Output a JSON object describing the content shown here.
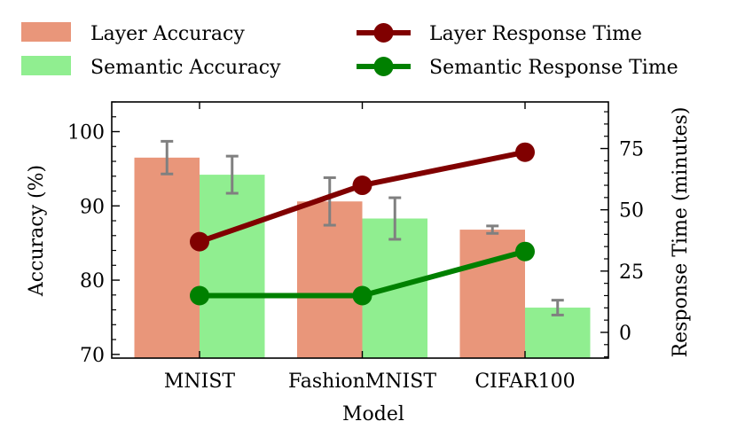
{
  "chart_data": {
    "type": "bar",
    "categories": [
      "MNIST",
      "FashionMNIST",
      "CIFAR100"
    ],
    "xlabel": "Model",
    "ylabel": "Accuracy (%)",
    "y2label": "Response Time (minutes)",
    "ylim": [
      69.5,
      104
    ],
    "y2lim": [
      -10.5,
      94
    ],
    "yticks": [
      70,
      80,
      90,
      100
    ],
    "y2ticks": [
      0,
      25,
      50,
      75
    ],
    "bar_series": [
      {
        "name": "Layer Accuracy",
        "color": "#e9967a",
        "values": [
          96.5,
          90.6,
          86.8
        ],
        "errors": [
          2.2,
          3.2,
          0.5
        ]
      },
      {
        "name": "Semantic Accuracy",
        "color": "#90ee90",
        "values": [
          94.2,
          88.3,
          76.3
        ],
        "errors": [
          2.5,
          2.8,
          1.0
        ]
      }
    ],
    "line_series": [
      {
        "name": "Layer Response Time",
        "color": "#800000",
        "values": [
          37,
          60,
          73.5
        ]
      },
      {
        "name": "Semantic Response Time",
        "color": "#008000",
        "values": [
          15,
          15,
          33
        ]
      }
    ],
    "error_bar_color": "#808080",
    "legend_position": "top"
  }
}
